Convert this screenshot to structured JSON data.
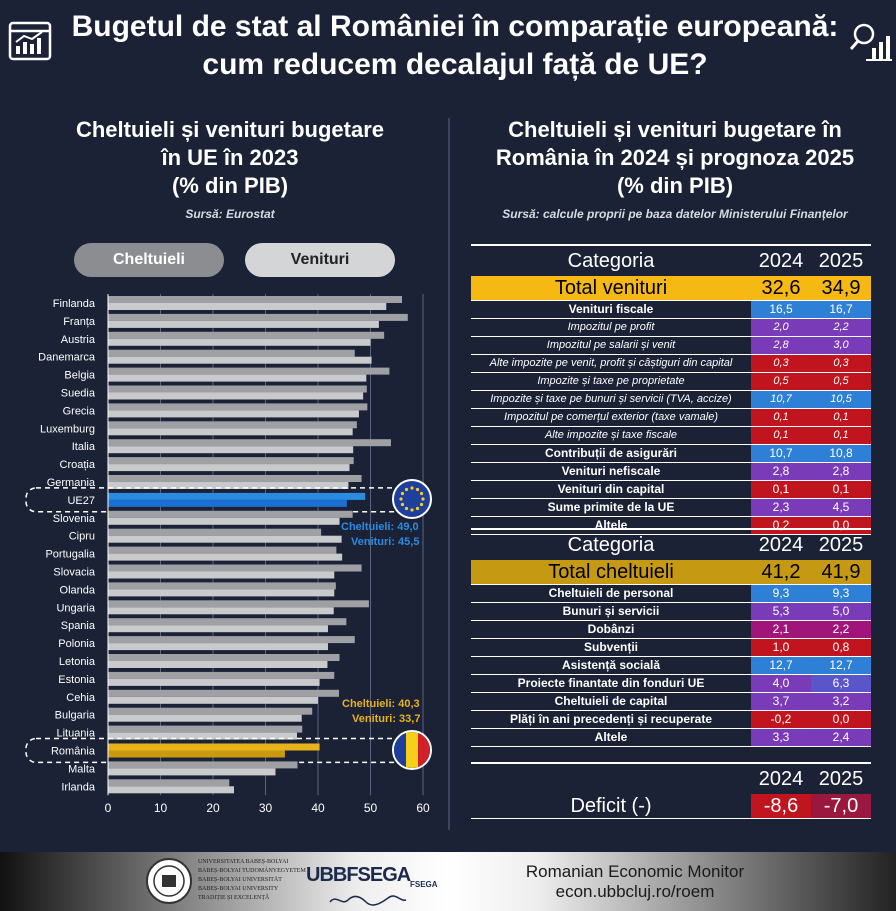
{
  "title_line1": "Bugetul de stat al României în comparație europeană:",
  "title_line2": "cum reducem decalajul față de UE?",
  "left": {
    "heading_line1": "Cheltuieli și venituri bugetare",
    "heading_line2": "în UE în 2023",
    "heading_line3": "(% din PIB)",
    "source": "Sursă: Eurostat",
    "btn_expenses": "Cheltuieli",
    "btn_revenues": "Venituri",
    "eu_annot_exp": "Cheltuieli: 49,0",
    "eu_annot_rev": "Venituri: 45,5",
    "ro_annot_exp": "Cheltuieli: 40,3",
    "ro_annot_rev": "Venituri: 33,7"
  },
  "chart_data": {
    "type": "bar",
    "orientation": "horizontal",
    "categories": [
      "Finlanda",
      "Franța",
      "Austria",
      "Danemarca",
      "Belgia",
      "Suedia",
      "Grecia",
      "Luxemburg",
      "Italia",
      "Croația",
      "Germania",
      "UE27",
      "Slovenia",
      "Cipru",
      "Portugalia",
      "Slovacia",
      "Olanda",
      "Ungaria",
      "Spania",
      "Polonia",
      "Letonia",
      "Estonia",
      "Cehia",
      "Bulgaria",
      "Lituania",
      "România",
      "Malta",
      "Irlanda"
    ],
    "series": [
      {
        "name": "Cheltuieli",
        "values": [
          56.0,
          57.1,
          52.6,
          47.0,
          53.6,
          49.3,
          49.4,
          47.4,
          53.9,
          46.8,
          48.3,
          49.0,
          46.6,
          40.6,
          43.5,
          48.3,
          43.4,
          49.7,
          45.4,
          47.0,
          44.1,
          43.1,
          44.0,
          38.9,
          37.0,
          40.3,
          36.1,
          23.1
        ]
      },
      {
        "name": "Venituri",
        "values": [
          53.0,
          51.6,
          50.0,
          50.2,
          49.2,
          48.6,
          47.8,
          46.6,
          46.7,
          46.0,
          45.8,
          45.5,
          44.1,
          44.5,
          44.6,
          43.1,
          43.1,
          43.0,
          41.9,
          41.9,
          41.8,
          40.3,
          40.0,
          36.9,
          36.0,
          33.7,
          31.9,
          24.0
        ]
      }
    ],
    "xlim": [
      0,
      60
    ],
    "xticks": [
      0,
      10,
      20,
      30,
      40,
      50,
      60
    ],
    "grid": true
  },
  "rev_table": {
    "h_cat": "Categoria",
    "h_y1": "2024",
    "h_y2": "2025",
    "total": {
      "label": "Total venituri",
      "y1": "32,6",
      "y2": "34,9"
    },
    "rows": [
      {
        "label": "Venituri fiscale",
        "y1": "16,5",
        "y2": "16,7",
        "sub": false,
        "c1": "#2e7fd6",
        "c2": "#2e7fd6"
      },
      {
        "label": "Impozitul pe profit",
        "y1": "2,0",
        "y2": "2,2",
        "sub": true,
        "c1": "#7a3bb8",
        "c2": "#7a3bb8"
      },
      {
        "label": "Impozitul pe salarii și venit",
        "y1": "2,8",
        "y2": "3,0",
        "sub": true,
        "c1": "#7a3bb8",
        "c2": "#7a3bb8"
      },
      {
        "label": "Alte impozite pe venit, profit și câștiguri din capital",
        "y1": "0,3",
        "y2": "0,3",
        "sub": true,
        "c1": "#c0141e",
        "c2": "#c0141e"
      },
      {
        "label": "Impozite și taxe pe proprietate",
        "y1": "0,5",
        "y2": "0,5",
        "sub": true,
        "c1": "#c0141e",
        "c2": "#c0141e"
      },
      {
        "label": "Impozite și taxe pe bunuri și servicii (TVA, accize)",
        "y1": "10,7",
        "y2": "10,5",
        "sub": true,
        "c1": "#2e7fd6",
        "c2": "#2e7fd6"
      },
      {
        "label": "Impozitul pe comerțul exterior (taxe vamale)",
        "y1": "0,1",
        "y2": "0,1",
        "sub": true,
        "c1": "#c0141e",
        "c2": "#c0141e"
      },
      {
        "label": "Alte impozite și taxe fiscale",
        "y1": "0,1",
        "y2": "0,1",
        "sub": true,
        "c1": "#c0141e",
        "c2": "#c0141e"
      },
      {
        "label": "Contribuții de asigurări",
        "y1": "10,7",
        "y2": "10,8",
        "sub": false,
        "c1": "#2e7fd6",
        "c2": "#2e7fd6"
      },
      {
        "label": "Venituri nefiscale",
        "y1": "2,8",
        "y2": "2,8",
        "sub": false,
        "c1": "#7a3bb8",
        "c2": "#7a3bb8"
      },
      {
        "label": "Venituri din capital",
        "y1": "0,1",
        "y2": "0,1",
        "sub": false,
        "c1": "#c0141e",
        "c2": "#c0141e"
      },
      {
        "label": "Sume primite de la UE",
        "y1": "2,3",
        "y2": "4,5",
        "sub": false,
        "c1": "#7a3bb8",
        "c2": "#7a3bb8"
      },
      {
        "label": "Altele",
        "y1": "0,2",
        "y2": "0,0",
        "sub": false,
        "c1": "#c0141e",
        "c2": "#c0141e"
      }
    ]
  },
  "exp_table": {
    "h_cat": "Categoria",
    "h_y1": "2024",
    "h_y2": "2025",
    "total": {
      "label": "Total cheltuieli",
      "y1": "41,2",
      "y2": "41,9"
    },
    "rows": [
      {
        "label": "Cheltuieli de personal",
        "y1": "9,3",
        "y2": "9,3",
        "c1": "#2e7fd6",
        "c2": "#2e7fd6"
      },
      {
        "label": "Bunuri și servicii",
        "y1": "5,3",
        "y2": "5,0",
        "c1": "#7a3bb8",
        "c2": "#7a3bb8"
      },
      {
        "label": "Dobânzi",
        "y1": "2,1",
        "y2": "2,2",
        "c1": "#a0157a",
        "c2": "#a0157a"
      },
      {
        "label": "Subvenții",
        "y1": "1,0",
        "y2": "0,8",
        "c1": "#c0141e",
        "c2": "#c0141e"
      },
      {
        "label": "Asistență socială",
        "y1": "12,7",
        "y2": "12,7",
        "c1": "#2e7fd6",
        "c2": "#2e7fd6"
      },
      {
        "label": "Proiecte finantate din fonduri UE",
        "y1": "4,0",
        "y2": "6,3",
        "c1": "#7a3bb8",
        "c2": "#5a55c8"
      },
      {
        "label": "Cheltuieli de capital",
        "y1": "3,7",
        "y2": "3,2",
        "c1": "#7a3bb8",
        "c2": "#7a3bb8"
      },
      {
        "label": "Plăți în ani precedenți și recuperate",
        "y1": "-0,2",
        "y2": "0,0",
        "c1": "#c0141e",
        "c2": "#c0141e"
      },
      {
        "label": "Altele",
        "y1": "3,3",
        "y2": "2,4",
        "c1": "#7a3bb8",
        "c2": "#7a3bb8"
      }
    ]
  },
  "deficit": {
    "h_y1": "2024",
    "h_y2": "2025",
    "label": "Deficit (-)",
    "y1": "-8,6",
    "y2": "-7,0"
  },
  "footer": {
    "univ_line1": "UNIVERSITATEA BABEȘ-BOLYAI",
    "univ_line2": "BABEȘ-BOLYAI TUDOMÁNYEGYETEM",
    "univ_line3": "BABEȘ-BOLYAI UNIVERSITÄT",
    "univ_line4": "BABEȘ-BOLYAI UNIVERSITY",
    "univ_line5": "TRADIȚIE ȘI EXCELENȚĂ",
    "fsega_logo": "UBBFSEGA",
    "fsega_badge": "FSEGA",
    "monitor": "Romanian Economic Monitor",
    "url": "econ.ubbcluj.ro/roem"
  },
  "colors": {
    "exp_bar": "#9ea0a4",
    "rev_bar": "#c9cacc",
    "eu_exp": "#2a8ce0",
    "eu_rev": "#1a6fd0",
    "ro_exp": "#e8b21a",
    "ro_rev": "#c99a10",
    "total_rev": "#f6b914",
    "total_exp": "#c59a12"
  }
}
